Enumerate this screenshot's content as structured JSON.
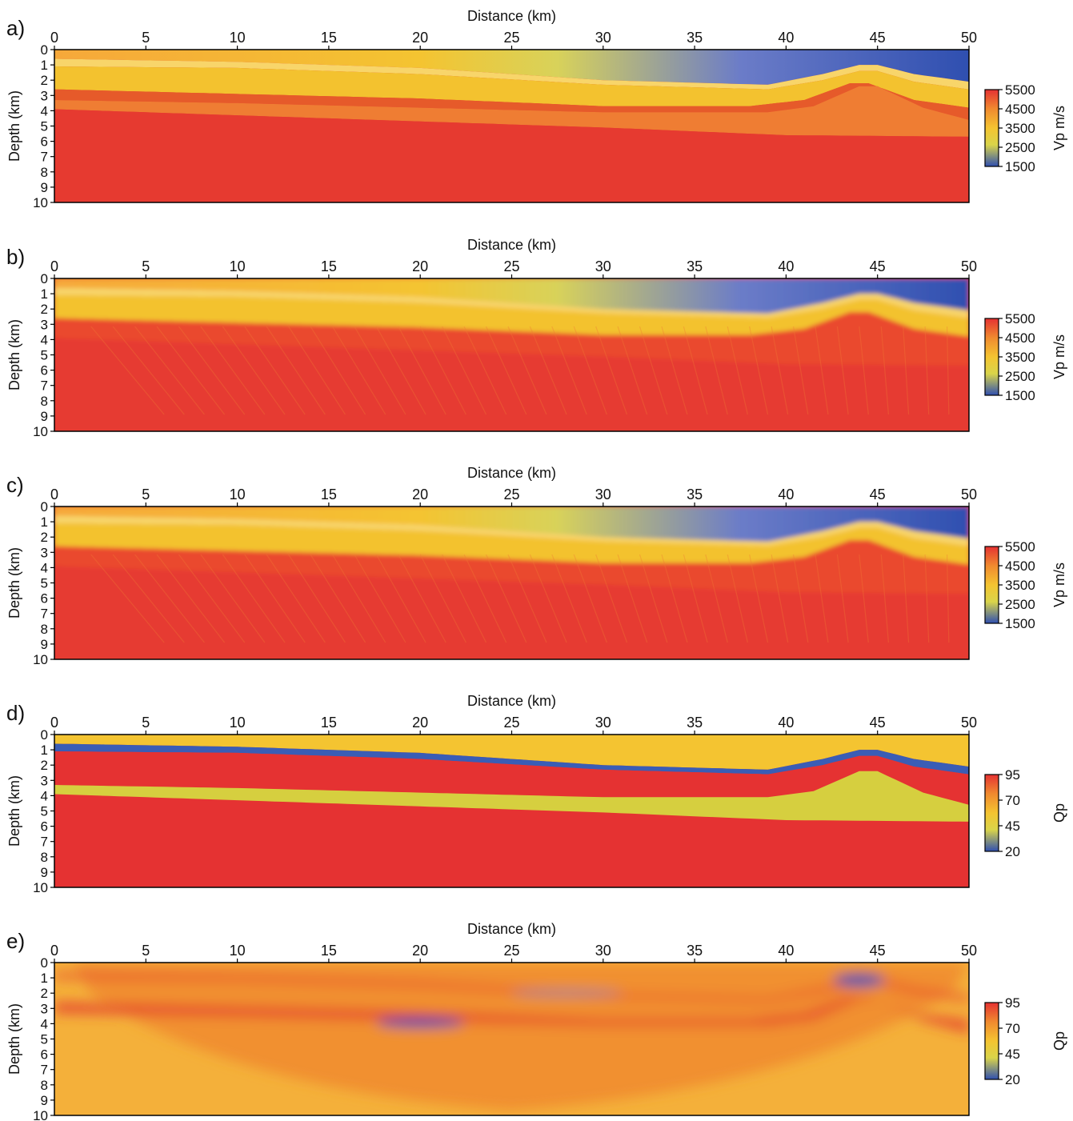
{
  "chart_data": [
    {
      "panel_label": "a)",
      "type": "heatmap",
      "xlabel": "Distance (km)",
      "ylabel": "Depth (km)",
      "xlim": [
        0,
        50
      ],
      "ylim": [
        0,
        10
      ],
      "x_ticks": [
        0,
        5,
        10,
        15,
        20,
        25,
        30,
        35,
        40,
        45,
        50
      ],
      "y_ticks": [
        0,
        1,
        2,
        3,
        4,
        5,
        6,
        7,
        8,
        9,
        10
      ],
      "colorbar": {
        "label": "Vp m/s",
        "ticks": [
          5500,
          4500,
          3500,
          2500,
          1500
        ],
        "range": [
          1500,
          5500
        ]
      },
      "field_style": "true-vp",
      "field_description_hidden": true
    },
    {
      "panel_label": "b)",
      "type": "heatmap",
      "xlabel": "Distance (km)",
      "ylabel": "Depth (km)",
      "xlim": [
        0,
        50
      ],
      "ylim": [
        0,
        10
      ],
      "x_ticks": [
        0,
        5,
        10,
        15,
        20,
        25,
        30,
        35,
        40,
        45,
        50
      ],
      "y_ticks": [
        0,
        1,
        2,
        3,
        4,
        5,
        6,
        7,
        8,
        9,
        10
      ],
      "colorbar": {
        "label": "Vp m/s",
        "ticks": [
          5500,
          4500,
          3500,
          2500,
          1500
        ],
        "range": [
          1500,
          5500
        ]
      },
      "field_style": "inverted-vp-b"
    },
    {
      "panel_label": "c)",
      "type": "heatmap",
      "xlabel": "Distance (km)",
      "ylabel": "Depth (km)",
      "xlim": [
        0,
        50
      ],
      "ylim": [
        0,
        10
      ],
      "x_ticks": [
        0,
        5,
        10,
        15,
        20,
        25,
        30,
        35,
        40,
        45,
        50
      ],
      "y_ticks": [
        0,
        1,
        2,
        3,
        4,
        5,
        6,
        7,
        8,
        9,
        10
      ],
      "colorbar": {
        "label": "Vp m/s",
        "ticks": [
          5500,
          4500,
          3500,
          2500,
          1500
        ],
        "range": [
          1500,
          5500
        ]
      },
      "field_style": "inverted-vp-c"
    },
    {
      "panel_label": "d)",
      "type": "heatmap",
      "xlabel": "Distance (km)",
      "ylabel": "Depth (km)",
      "xlim": [
        0,
        50
      ],
      "ylim": [
        0,
        10
      ],
      "x_ticks": [
        0,
        5,
        10,
        15,
        20,
        25,
        30,
        35,
        40,
        45,
        50
      ],
      "y_ticks": [
        0,
        1,
        2,
        3,
        4,
        5,
        6,
        7,
        8,
        9,
        10
      ],
      "colorbar": {
        "label": "Qp",
        "ticks": [
          95,
          70,
          45,
          20
        ],
        "range": [
          20,
          95
        ]
      },
      "field_style": "true-qp"
    },
    {
      "panel_label": "e)",
      "type": "heatmap",
      "xlabel": "Distance (km)",
      "ylabel": "Depth (km)",
      "xlim": [
        0,
        50
      ],
      "ylim": [
        0,
        10
      ],
      "x_ticks": [
        0,
        5,
        10,
        15,
        20,
        25,
        30,
        35,
        40,
        45,
        50
      ],
      "y_ticks": [
        0,
        1,
        2,
        3,
        4,
        5,
        6,
        7,
        8,
        9,
        10
      ],
      "colorbar": {
        "label": "Qp",
        "ticks": [
          95,
          70,
          45,
          20
        ],
        "range": [
          20,
          95
        ]
      },
      "field_style": "inverted-qp"
    }
  ],
  "colors": {
    "scale_low": "#2f4fb0",
    "scale_mid_low": "#d9d44a",
    "scale_mid": "#f4c431",
    "scale_mid_high": "#f08a2f",
    "scale_high": "#e53232",
    "frame": "#000000"
  }
}
